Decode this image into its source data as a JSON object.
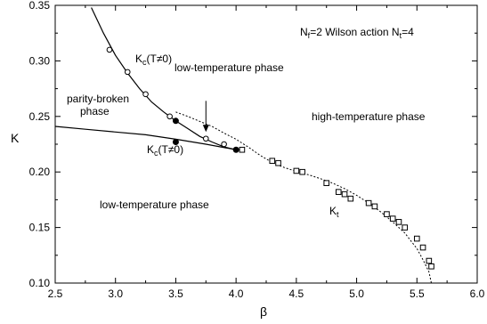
{
  "chart_data": {
    "type": "scatter",
    "title": "",
    "xlabel": "β",
    "ylabel": "K",
    "xlim": [
      2.5,
      6.0
    ],
    "ylim": [
      0.1,
      0.35
    ],
    "xticks": [
      "2.5",
      "3.0",
      "3.5",
      "4.0",
      "4.5",
      "5.0",
      "5.5",
      "6.0"
    ],
    "yticks": [
      "0.10",
      "0.15",
      "0.20",
      "0.25",
      "0.30",
      "0.35"
    ],
    "grid": false,
    "legend": "none",
    "annotations": {
      "nf_label": "N",
      "nf_sub": "f",
      "nf_rest": "=2  Wilson action  N",
      "nt_sub": "t",
      "nt_rest": "=4",
      "low_temp_upper": "low-temperature phase",
      "parity_broken_1": "parity-broken",
      "parity_broken_2": "phase",
      "high_temp": "high-temperature phase",
      "low_temp_lower": "low-temperature phase",
      "kc_upper_main": "K",
      "kc_upper_sub": "c",
      "kc_upper_rest": "(T≠0)",
      "kc_lower_main": "K",
      "kc_lower_sub": "c",
      "kc_lower_rest": "(T≠0)",
      "kt_main": "K",
      "kt_sub": "t"
    },
    "series": [
      {
        "style": "solid-line",
        "x": [
          2.5,
          2.75,
          3.0,
          3.25,
          3.5,
          3.75,
          4.0
        ],
        "y": [
          0.241,
          0.2385,
          0.236,
          0.2335,
          0.2295,
          0.225,
          0.22
        ]
      },
      {
        "style": "solid-line",
        "x": [
          2.8,
          2.9,
          3.0,
          3.1,
          3.2,
          3.3,
          3.4,
          3.5,
          3.6,
          3.7,
          3.8,
          3.9,
          4.0
        ],
        "y": [
          0.348,
          0.325,
          0.305,
          0.289,
          0.275,
          0.263,
          0.254,
          0.246,
          0.239,
          0.232,
          0.227,
          0.2225,
          0.22
        ]
      },
      {
        "style": "dotted-line",
        "x": [
          3.5,
          3.6,
          3.7,
          3.8,
          3.9,
          4.0,
          4.1,
          4.2,
          4.3,
          4.4,
          4.5,
          4.6,
          4.7,
          4.8,
          4.9,
          5.0,
          5.1,
          5.2,
          5.3,
          5.4,
          5.5,
          5.55,
          5.6,
          5.62
        ],
        "y": [
          0.254,
          0.25,
          0.2455,
          0.241,
          0.235,
          0.2295,
          0.2225,
          0.215,
          0.2085,
          0.204,
          0.2005,
          0.1975,
          0.194,
          0.19,
          0.185,
          0.179,
          0.172,
          0.164,
          0.155,
          0.145,
          0.131,
          0.121,
          0.11,
          0.1
        ]
      },
      {
        "style": "open-circle",
        "x": [
          2.95,
          3.1,
          3.25,
          3.45,
          3.75,
          3.9
        ],
        "y": [
          0.31,
          0.29,
          0.27,
          0.25,
          0.23,
          0.225
        ]
      },
      {
        "style": "filled-circle",
        "x": [
          3.5,
          3.5,
          4.0
        ],
        "y": [
          0.246,
          0.227,
          0.22
        ]
      },
      {
        "style": "open-square",
        "x": [
          4.05,
          4.3,
          4.35,
          4.5,
          4.55,
          4.75,
          4.85,
          4.9,
          4.95,
          5.1,
          5.15,
          5.25,
          5.3,
          5.35,
          5.4,
          5.5,
          5.55,
          5.6,
          5.62
        ],
        "y": [
          0.22,
          0.21,
          0.208,
          0.201,
          0.2,
          0.19,
          0.182,
          0.18,
          0.176,
          0.172,
          0.169,
          0.162,
          0.158,
          0.155,
          0.15,
          0.14,
          0.132,
          0.12,
          0.115
        ]
      }
    ],
    "arrow": {
      "from": [
        3.75,
        0.264
      ],
      "to": [
        3.75,
        0.236
      ]
    }
  }
}
